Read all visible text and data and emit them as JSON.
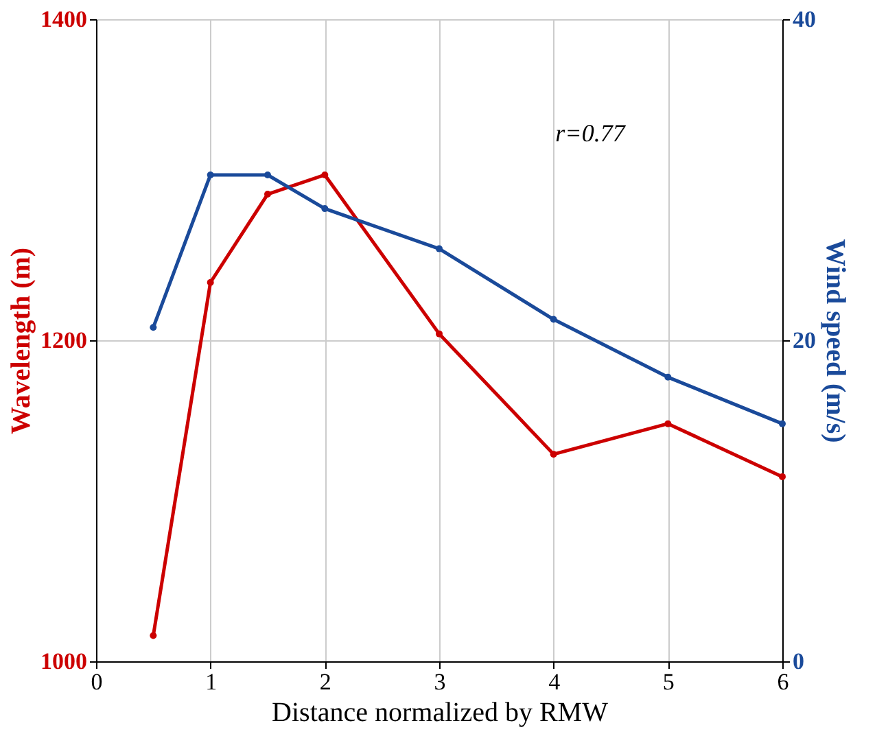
{
  "chart_data": {
    "type": "line",
    "xlabel": "Distance normalized by RMW",
    "ylabel": "Wavelength (m)",
    "y2label": "Wind speed (m/s)",
    "x": [
      0.5,
      1,
      1.5,
      2,
      3,
      4,
      5,
      6
    ],
    "series": [
      {
        "color": "#cc0000",
        "values": [
          1016,
          1236,
          1291,
          1303,
          1204,
          1129,
          1148,
          1115
        ]
      },
      {
        "color": "#1a4a9a",
        "axis": "y2",
        "values": [
          20.8,
          30.3,
          30.3,
          28.2,
          25.7,
          21.3,
          17.7,
          14.8
        ]
      }
    ],
    "xlim": [
      0,
      6
    ],
    "xticks": [
      0,
      1,
      2,
      3,
      4,
      5,
      6
    ],
    "ylim": [
      1000,
      1400
    ],
    "yticks": [
      1000,
      1200,
      1400
    ],
    "y2lim": [
      0,
      40
    ],
    "y2ticks": [
      0,
      20,
      40
    ],
    "grid": true,
    "marker": "circle",
    "line_style": "solid",
    "annotations": [
      "r=0.77"
    ]
  }
}
